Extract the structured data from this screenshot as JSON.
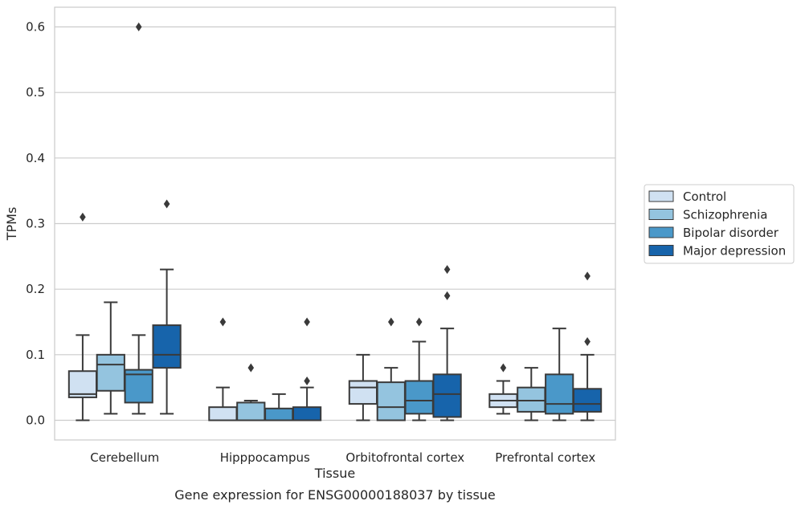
{
  "chart_data": {
    "type": "box",
    "xlabel": "Tissue",
    "ylabel": "TPMs",
    "caption": "Gene expression for ENSG00000188037 by tissue",
    "ylim": [
      -0.03,
      0.63
    ],
    "yticks": [
      0.0,
      0.1,
      0.2,
      0.3,
      0.4,
      0.5,
      0.6
    ],
    "grid": true,
    "legend_position": "right",
    "categories": [
      "Cerebellum",
      "Hipppocampus",
      "Orbitofrontal cortex",
      "Prefrontal cortex"
    ],
    "series": [
      {
        "name": "Control",
        "color": "#d0e1f2",
        "boxes": [
          {
            "whislo": 0.0,
            "q1": 0.035,
            "med": 0.04,
            "q3": 0.075,
            "whishi": 0.13,
            "fliers": [
              0.31
            ]
          },
          {
            "whislo": 0.0,
            "q1": 0.0,
            "med": 0.0,
            "q3": 0.02,
            "whishi": 0.05,
            "fliers": [
              0.15
            ]
          },
          {
            "whislo": 0.0,
            "q1": 0.025,
            "med": 0.05,
            "q3": 0.06,
            "whishi": 0.1,
            "fliers": []
          },
          {
            "whislo": 0.01,
            "q1": 0.02,
            "med": 0.03,
            "q3": 0.04,
            "whishi": 0.06,
            "fliers": [
              0.08
            ]
          }
        ]
      },
      {
        "name": "Schizophrenia",
        "color": "#94c4df",
        "boxes": [
          {
            "whislo": 0.01,
            "q1": 0.045,
            "med": 0.085,
            "q3": 0.1,
            "whishi": 0.18,
            "fliers": []
          },
          {
            "whislo": 0.0,
            "q1": 0.0,
            "med": 0.0,
            "q3": 0.027,
            "whishi": 0.03,
            "fliers": [
              0.08
            ]
          },
          {
            "whislo": 0.0,
            "q1": 0.0,
            "med": 0.02,
            "q3": 0.058,
            "whishi": 0.08,
            "fliers": [
              0.15
            ]
          },
          {
            "whislo": 0.0,
            "q1": 0.013,
            "med": 0.03,
            "q3": 0.05,
            "whishi": 0.08,
            "fliers": []
          }
        ]
      },
      {
        "name": "Bipolar disorder",
        "color": "#4a98c9",
        "boxes": [
          {
            "whislo": 0.01,
            "q1": 0.027,
            "med": 0.07,
            "q3": 0.077,
            "whishi": 0.13,
            "fliers": [
              0.6
            ]
          },
          {
            "whislo": 0.0,
            "q1": 0.0,
            "med": 0.0,
            "q3": 0.018,
            "whishi": 0.04,
            "fliers": []
          },
          {
            "whislo": 0.0,
            "q1": 0.01,
            "med": 0.03,
            "q3": 0.06,
            "whishi": 0.12,
            "fliers": [
              0.15
            ]
          },
          {
            "whislo": 0.0,
            "q1": 0.01,
            "med": 0.025,
            "q3": 0.07,
            "whishi": 0.14,
            "fliers": []
          }
        ]
      },
      {
        "name": "Major depression",
        "color": "#1764ab",
        "boxes": [
          {
            "whislo": 0.01,
            "q1": 0.08,
            "med": 0.1,
            "q3": 0.145,
            "whishi": 0.23,
            "fliers": [
              0.33
            ]
          },
          {
            "whislo": 0.0,
            "q1": 0.0,
            "med": 0.0,
            "q3": 0.02,
            "whishi": 0.05,
            "fliers": [
              0.06,
              0.15
            ]
          },
          {
            "whislo": 0.0,
            "q1": 0.005,
            "med": 0.04,
            "q3": 0.07,
            "whishi": 0.14,
            "fliers": [
              0.19,
              0.23
            ]
          },
          {
            "whislo": 0.0,
            "q1": 0.013,
            "med": 0.025,
            "q3": 0.048,
            "whishi": 0.1,
            "fliers": [
              0.12,
              0.22
            ]
          }
        ]
      }
    ]
  }
}
